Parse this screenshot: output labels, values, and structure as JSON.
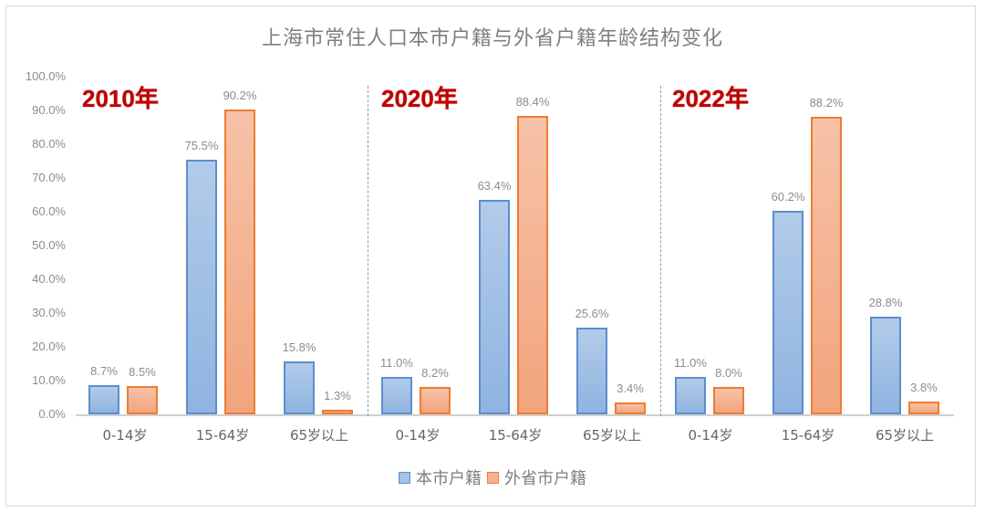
{
  "title": "上海市常住人口本市户籍与外省户籍年龄结构变化",
  "y_ticks": [
    "100.0%",
    "90.0%",
    "80.0%",
    "70.0%",
    "60.0%",
    "50.0%",
    "40.0%",
    "30.0%",
    "20.0%",
    "10.0%",
    "0.0%"
  ],
  "groups": [
    {
      "year": "2010年",
      "categories": [
        "0-14岁",
        "15-64岁",
        "65岁以上"
      ],
      "local": [
        "8.7%",
        "75.5%",
        "15.8%"
      ],
      "nonlocal": [
        "8.5%",
        "90.2%",
        "1.3%"
      ]
    },
    {
      "year": "2020年",
      "categories": [
        "0-14岁",
        "15-64岁",
        "65岁以上"
      ],
      "local": [
        "11.0%",
        "63.4%",
        "25.6%"
      ],
      "nonlocal": [
        "8.2%",
        "88.4%",
        "3.4%"
      ]
    },
    {
      "year": "2022年",
      "categories": [
        "0-14岁",
        "15-64岁",
        "65岁以上"
      ],
      "local": [
        "11.0%",
        "60.2%",
        "28.8%"
      ],
      "nonlocal": [
        "8.0%",
        "88.2%",
        "3.8%"
      ]
    }
  ],
  "legend": {
    "local": "本市户籍",
    "nonlocal": "外省市户籍"
  },
  "colors": {
    "local_fill": "#a6c3e6",
    "local_border": "#5b8ed0",
    "nonlocal_fill": "#f4b394",
    "nonlocal_border": "#ed7d31",
    "year_label": "#c00000"
  },
  "chart_data": {
    "type": "bar",
    "title": "上海市常住人口本市户籍与外省户籍年龄结构变化",
    "xlabel": "",
    "ylabel": "",
    "ylim": [
      0,
      100
    ],
    "y_tick_format": "percent_1dp",
    "grid": false,
    "legend_position": "bottom",
    "panels": [
      "2010年",
      "2020年",
      "2022年"
    ],
    "categories": [
      "0-14岁",
      "15-64岁",
      "65岁以上"
    ],
    "series": [
      {
        "name": "本市户籍",
        "values": {
          "2010年": [
            8.7,
            75.5,
            15.8
          ],
          "2020年": [
            11.0,
            63.4,
            25.6
          ],
          "2022年": [
            11.0,
            60.2,
            28.8
          ]
        }
      },
      {
        "name": "外省市户籍",
        "values": {
          "2010年": [
            8.5,
            90.2,
            1.3
          ],
          "2020年": [
            8.2,
            88.4,
            3.4
          ],
          "2022年": [
            8.0,
            88.2,
            3.8
          ]
        }
      }
    ]
  }
}
